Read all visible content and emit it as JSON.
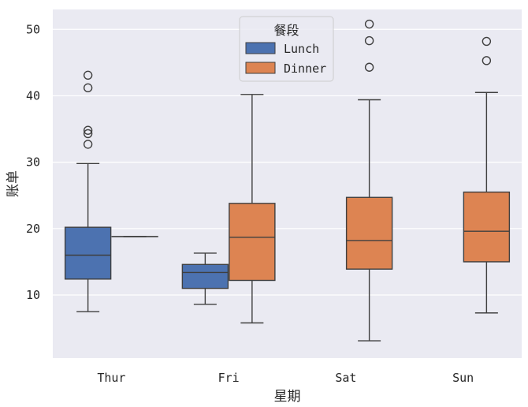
{
  "chart_data": {
    "type": "boxplot",
    "title": "",
    "xlabel": "星期",
    "ylabel": "账单",
    "categories": [
      "Thur",
      "Fri",
      "Sat",
      "Sun"
    ],
    "ylim": [
      0.5,
      53
    ],
    "yticks": [
      10,
      20,
      30,
      40,
      50
    ],
    "grid": true,
    "legend": {
      "title": "餐段",
      "position": "top-center"
    },
    "colors": {
      "Lunch": "#4c72b0",
      "Dinner": "#dd8452",
      "background": "#eaeaf2",
      "line": "#3f3f3f"
    },
    "series": [
      {
        "name": "Lunch",
        "boxes": [
          {
            "category": "Thur",
            "whisker_low": 7.5,
            "q1": 12.4,
            "median": 16.0,
            "q3": 20.2,
            "whisker_high": 29.8,
            "outliers": [
              32.7,
              34.3,
              34.8,
              41.2,
              43.1
            ]
          },
          {
            "category": "Fri",
            "whisker_low": 8.6,
            "q1": 11.0,
            "median": 13.4,
            "q3": 14.6,
            "whisker_high": 16.3,
            "outliers": []
          }
        ]
      },
      {
        "name": "Dinner",
        "boxes": [
          {
            "category": "Thur",
            "whisker_low": 18.8,
            "q1": 18.8,
            "median": 18.8,
            "q3": 18.8,
            "whisker_high": 18.8,
            "outliers": []
          },
          {
            "category": "Fri",
            "whisker_low": 5.8,
            "q1": 12.2,
            "median": 18.7,
            "q3": 23.8,
            "whisker_high": 40.2,
            "outliers": []
          },
          {
            "category": "Sat",
            "whisker_low": 3.1,
            "q1": 13.9,
            "median": 18.2,
            "q3": 24.7,
            "whisker_high": 39.4,
            "outliers": [
              44.3,
              48.3,
              50.8
            ]
          },
          {
            "category": "Sun",
            "whisker_low": 7.3,
            "q1": 15.0,
            "median": 19.6,
            "q3": 25.5,
            "whisker_high": 40.5,
            "outliers": [
              45.3,
              48.2
            ]
          }
        ]
      }
    ]
  }
}
